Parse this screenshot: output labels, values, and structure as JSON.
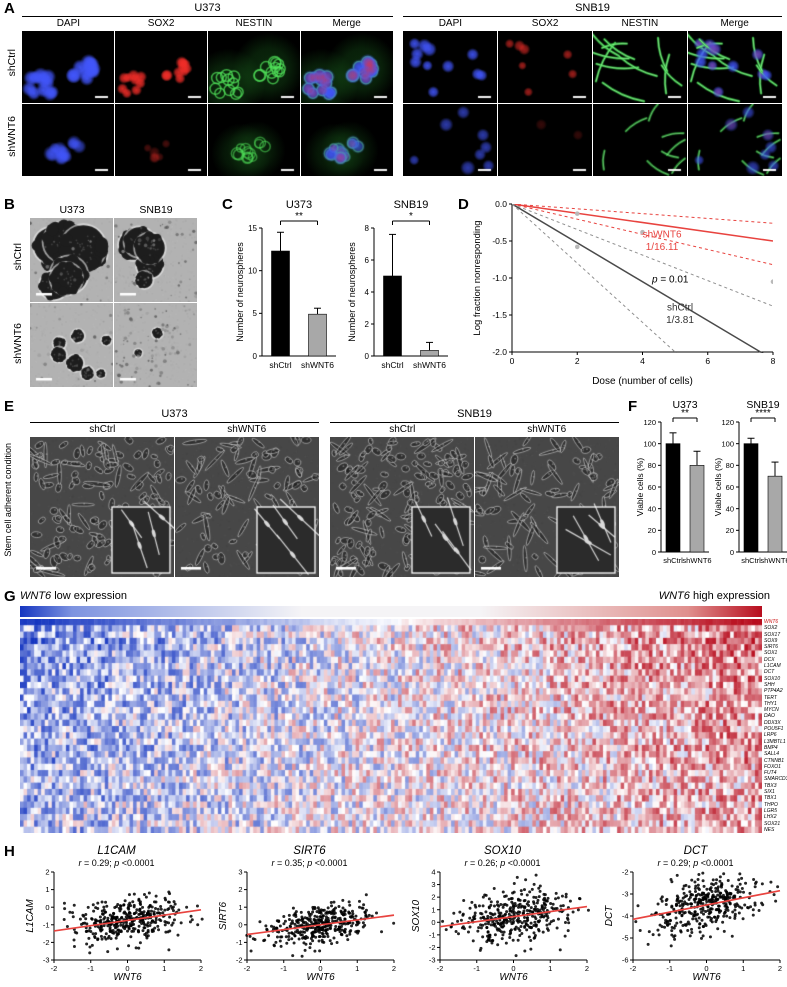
{
  "panels": {
    "A": {
      "label": "A",
      "row_labels": [
        "shCtrl",
        "shWNT6"
      ],
      "groups": [
        {
          "title": "U373",
          "channels": [
            "DAPI",
            "SOX2",
            "NESTIN",
            "Merge"
          ]
        },
        {
          "title": "SNB19",
          "channels": [
            "DAPI",
            "SOX2",
            "NESTIN",
            "Merge"
          ]
        }
      ]
    },
    "B": {
      "label": "B",
      "col_labels": [
        "U373",
        "SNB19"
      ],
      "row_labels": [
        "shCtrl",
        "shWNT6"
      ]
    },
    "C": {
      "label": "C"
    },
    "D": {
      "label": "D"
    },
    "E": {
      "label": "E",
      "side_label": "Stem cell adherent condition",
      "groups": [
        {
          "title": "U373",
          "conditions": [
            "shCtrl",
            "shWNT6"
          ]
        },
        {
          "title": "SNB19",
          "conditions": [
            "shCtrl",
            "shWNT6"
          ]
        }
      ]
    },
    "F": {
      "label": "F"
    },
    "G": {
      "label": "G",
      "left_label_gene": "WNT6",
      "left_label_rest": " low expression",
      "right_label_gene": "WNT6",
      "right_label_rest": " high expression",
      "gradient": {
        "low": "#1535c0",
        "mid": "#f5f4f6",
        "high": "#b80d1e"
      },
      "genes": [
        "WNT6",
        "SOX2",
        "SOX17",
        "SOX9",
        "SIRT6",
        "SOX1",
        "DCX",
        "L1CAM",
        "DCT",
        "SOX10",
        "SHH",
        "PTP4A2",
        "TERT",
        "THY1",
        "MYCN",
        "DAO",
        "DDX3X",
        "POU5F1",
        "LRP6",
        "L3MBTL1",
        "BMP4",
        "SALL4",
        "CTNNB1",
        "FOXO1",
        "FUT4",
        "SMARCD3",
        "TBX3",
        "SIX1",
        "TBX1",
        "THPO",
        "LGR5",
        "LHX2",
        "SOX21",
        "NES"
      ]
    },
    "H": {
      "label": "H"
    }
  },
  "chart_data": [
    {
      "id": "C_U373",
      "type": "bar",
      "title": "U373",
      "ylabel": "Number of neurospheres",
      "categories": [
        "shCtrl",
        "shWNT6"
      ],
      "values": [
        12.3,
        4.9
      ],
      "errors": [
        2.2,
        0.7
      ],
      "bar_colors": [
        "#000000",
        "#a8a8a8"
      ],
      "ylim": [
        0,
        15
      ],
      "yticks": [
        0,
        5,
        10,
        15
      ],
      "significance": "**"
    },
    {
      "id": "C_SNB19",
      "type": "bar",
      "title": "SNB19",
      "ylabel": "Number of neurospheres",
      "categories": [
        "shCtrl",
        "shWNT6"
      ],
      "values": [
        5.0,
        0.35
      ],
      "errors": [
        2.6,
        0.5
      ],
      "bar_colors": [
        "#000000",
        "#a8a8a8"
      ],
      "ylim": [
        0,
        8
      ],
      "yticks": [
        0,
        2,
        4,
        6,
        8
      ],
      "significance": "*"
    },
    {
      "id": "D_LDA",
      "type": "line",
      "xlabel": "Dose (number of cells)",
      "ylabel": "Log fraction nonresponding",
      "xlim": [
        0,
        8
      ],
      "ylim": [
        -2,
        0
      ],
      "xticks": [
        0,
        2,
        4,
        6,
        8
      ],
      "yticks": [
        "0.0",
        "-0.5",
        "-1.0",
        "-1.5",
        "-2.0"
      ],
      "series": [
        {
          "name": "shWNT6",
          "estimate": "1/16.11",
          "color": "#e8433f",
          "fit_end": -0.5,
          "ci_end": [
            -0.26,
            -0.82
          ]
        },
        {
          "name": "shCtrl",
          "estimate": "1/3.81",
          "color": "#4a4a4a",
          "ci_color": "#909090",
          "fit_end": -2.1,
          "ci_end": [
            -1.38,
            -3.2
          ]
        }
      ],
      "p_label": "p",
      "p_text": " = 0.01",
      "points": [
        [
          2,
          -0.13
        ],
        [
          4,
          -0.38
        ],
        [
          2,
          -0.58
        ],
        [
          8,
          -1.05
        ]
      ]
    },
    {
      "id": "F_U373",
      "type": "bar",
      "title": "U373",
      "ylabel": "Viable cells (%)",
      "categories": [
        "shCtrl",
        "shWNT6"
      ],
      "values": [
        100,
        80
      ],
      "errors": [
        10,
        13
      ],
      "bar_colors": [
        "#000000",
        "#a8a8a8"
      ],
      "ylim": [
        0,
        120
      ],
      "yticks": [
        0,
        20,
        40,
        60,
        80,
        100,
        120
      ],
      "significance": "**"
    },
    {
      "id": "F_SNB19",
      "type": "bar",
      "title": "SNB19",
      "ylabel": "Viable cells (%)",
      "categories": [
        "shCtrl",
        "shWNT6"
      ],
      "values": [
        100,
        70
      ],
      "errors": [
        5,
        13
      ],
      "bar_colors": [
        "#000000",
        "#a8a8a8"
      ],
      "ylim": [
        0,
        120
      ],
      "yticks": [
        0,
        20,
        40,
        60,
        80,
        100,
        120
      ],
      "significance": "****"
    },
    {
      "id": "G_heatmap",
      "type": "heatmap",
      "left_label": "WNT6 low expression",
      "right_label": "WNT6 high expression",
      "cols": 210,
      "value_range": [
        -1,
        1
      ],
      "colors": {
        "low": "#1535c0",
        "mid": "#ffffff",
        "high": "#b80d1e"
      },
      "description": "Samples ordered left-to-right by increasing WNT6 expression; rows are stemness-related genes"
    },
    {
      "id": "H_L1CAM",
      "type": "scatter",
      "title": "L1CAM",
      "stats": {
        "r_label": "r",
        "r_text": " = 0.29; ",
        "p_label": "p",
        "p_text": " <0.0001"
      },
      "xlabel": "WNT6",
      "ylabel": "L1CAM",
      "xlim": [
        -2,
        2
      ],
      "ylim": [
        -3,
        2
      ],
      "xticks": [
        -2,
        -1,
        0,
        1,
        2
      ],
      "yticks": [
        2,
        1,
        0,
        -1,
        -2,
        -3
      ],
      "trend": [
        [
          -2,
          -1.35
        ],
        [
          2,
          -0.15
        ]
      ],
      "n": 380,
      "sd": 0.62,
      "seed": 11
    },
    {
      "id": "H_SIRT6",
      "type": "scatter",
      "title": "SIRT6",
      "stats": {
        "r_label": "r",
        "r_text": " = 0.35; ",
        "p_label": "p",
        "p_text": " <0.0001"
      },
      "xlabel": "WNT6",
      "ylabel": "SIRT6",
      "xlim": [
        -2,
        2
      ],
      "ylim": [
        -2,
        3
      ],
      "xticks": [
        -2,
        -1,
        0,
        1,
        2
      ],
      "yticks": [
        3,
        2,
        1,
        0,
        -1,
        -2
      ],
      "trend": [
        [
          -2,
          -0.55
        ],
        [
          2,
          0.55
        ]
      ],
      "n": 380,
      "sd": 0.5,
      "seed": 22
    },
    {
      "id": "H_SOX10",
      "type": "scatter",
      "title": "SOX10",
      "stats": {
        "r_label": "r",
        "r_text": " = 0.26; ",
        "p_label": "p",
        "p_text": " <0.0001"
      },
      "xlabel": "WNT6",
      "ylabel": "SOX10",
      "xlim": [
        -2,
        2
      ],
      "ylim": [
        -3,
        4
      ],
      "xticks": [
        -2,
        -1,
        0,
        1,
        2
      ],
      "yticks": [
        4,
        3,
        2,
        1,
        0,
        -1,
        -2,
        -3
      ],
      "trend": [
        [
          -2,
          -0.35
        ],
        [
          2,
          1.25
        ]
      ],
      "n": 380,
      "sd": 1.05,
      "seed": 33
    },
    {
      "id": "H_DCT",
      "type": "scatter",
      "title": "DCT",
      "stats": {
        "r_label": "r",
        "r_text": " = 0.29; ",
        "p_label": "p",
        "p_text": " <0.0001"
      },
      "xlabel": "WNT6",
      "ylabel": "DCT",
      "xlim": [
        -2,
        2
      ],
      "ylim": [
        -6,
        -2
      ],
      "xticks": [
        -2,
        -1,
        0,
        1,
        2
      ],
      "yticks": [
        -2,
        -3,
        -4,
        -5,
        -6
      ],
      "trend": [
        [
          -2,
          -4.15
        ],
        [
          2,
          -2.85
        ]
      ],
      "n": 380,
      "sd": 0.62,
      "seed": 44
    }
  ]
}
